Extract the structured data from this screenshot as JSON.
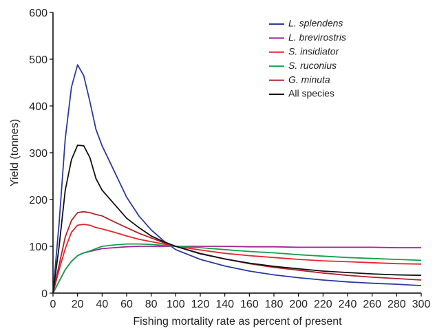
{
  "chart_data": {
    "type": "line",
    "x_label": "Fishing mortality rate as percent of present",
    "y_label": "Yield (tonnes)",
    "x": [
      0,
      5,
      10,
      15,
      20,
      25,
      30,
      35,
      40,
      50,
      60,
      70,
      80,
      90,
      100,
      120,
      140,
      160,
      180,
      200,
      220,
      240,
      260,
      280,
      300
    ],
    "xlim": [
      0,
      300
    ],
    "ylim": [
      0,
      600
    ],
    "xticks": [
      0,
      20,
      40,
      60,
      80,
      100,
      120,
      140,
      160,
      180,
      200,
      220,
      240,
      260,
      280,
      300
    ],
    "yticks": [
      0,
      100,
      200,
      300,
      400,
      500,
      600
    ],
    "series": [
      {
        "name": "L. splendens",
        "color": "#2b3a9c",
        "italic": true,
        "values": [
          0,
          150,
          330,
          440,
          488,
          465,
          410,
          350,
          315,
          260,
          205,
          165,
          135,
          112,
          93,
          72,
          58,
          47,
          39,
          33,
          28,
          24,
          21,
          19,
          16
        ]
      },
      {
        "name": "L. brevirostris",
        "color": "#a0229a",
        "italic": true,
        "values": [
          0,
          25,
          50,
          68,
          80,
          86,
          89,
          92,
          95,
          97,
          99,
          100,
          100,
          100,
          100,
          100,
          100,
          99,
          99,
          98,
          98,
          98,
          98,
          97,
          97
        ]
      },
      {
        "name": "S. insidiator",
        "color": "#e8252a",
        "italic": true,
        "values": [
          0,
          50,
          95,
          130,
          145,
          147,
          145,
          140,
          137,
          130,
          122,
          115,
          110,
          105,
          100,
          92,
          85,
          80,
          76,
          72,
          69,
          67,
          65,
          63,
          62
        ]
      },
      {
        "name": "S. ruconius",
        "color": "#14a04a",
        "italic": true,
        "values": [
          0,
          25,
          50,
          68,
          80,
          86,
          90,
          95,
          100,
          103,
          105,
          105,
          104,
          102,
          100,
          97,
          93,
          89,
          86,
          82,
          79,
          76,
          74,
          72,
          70
        ]
      },
      {
        "name": "G. minuta",
        "color": "#b5202a",
        "italic": true,
        "values": [
          0,
          60,
          120,
          155,
          172,
          174,
          172,
          168,
          165,
          152,
          140,
          128,
          118,
          108,
          100,
          85,
          73,
          63,
          55,
          49,
          43,
          38,
          34,
          31,
          28
        ]
      },
      {
        "name": "All species",
        "color": "#111111",
        "italic": false,
        "values": [
          0,
          100,
          220,
          285,
          316,
          315,
          290,
          245,
          220,
          190,
          160,
          140,
          122,
          110,
          100,
          84,
          73,
          64,
          57,
          52,
          47,
          44,
          41,
          39,
          38
        ]
      }
    ]
  }
}
